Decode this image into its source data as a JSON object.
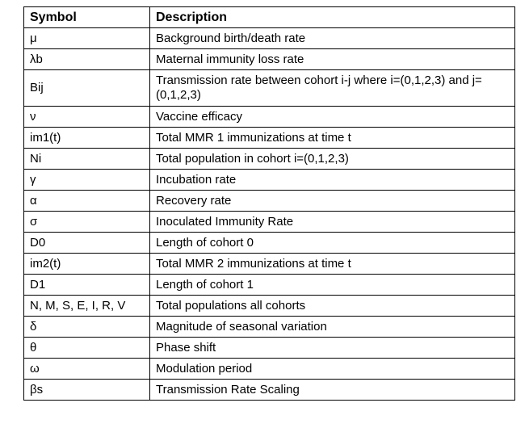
{
  "table": {
    "headers": [
      "Symbol",
      "Description"
    ],
    "rows": [
      {
        "symbol": "μ",
        "description": "Background birth/death rate"
      },
      {
        "symbol": "λb",
        "description": "Maternal immunity loss rate"
      },
      {
        "symbol": "Bij",
        "description": "Transmission rate between cohort i-j where i=(0,1,2,3) and j=(0,1,2,3)"
      },
      {
        "symbol": "ν",
        "description": "Vaccine efficacy"
      },
      {
        "symbol": "im1(t)",
        "description": "Total MMR 1 immunizations at time t"
      },
      {
        "symbol": "Ni",
        "description": "Total population in cohort i=(0,1,2,3)"
      },
      {
        "symbol": "γ",
        "description": "Incubation rate"
      },
      {
        "symbol": "α",
        "description": "Recovery rate"
      },
      {
        "symbol": "σ",
        "description": "Inoculated Immunity Rate"
      },
      {
        "symbol": "D0",
        "description": "Length of cohort 0"
      },
      {
        "symbol": "im2(t)",
        "description": "Total MMR 2 immunizations at time t"
      },
      {
        "symbol": "D1",
        "description": "Length of cohort 1"
      },
      {
        "symbol": "N, M, S, E, I, R, V",
        "description": "Total populations all cohorts"
      },
      {
        "symbol": "δ",
        "description": "Magnitude of seasonal variation"
      },
      {
        "symbol": "θ",
        "description": "Phase shift"
      },
      {
        "symbol": "ω",
        "description": "Modulation period"
      },
      {
        "symbol": "βs",
        "description": "Transmission Rate Scaling"
      }
    ]
  }
}
